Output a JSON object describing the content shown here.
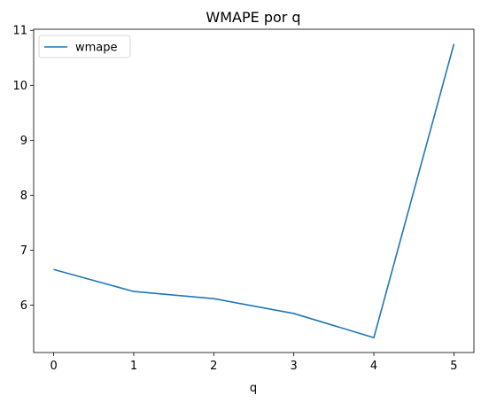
{
  "chart_data": {
    "type": "line",
    "title": "WMAPE por q",
    "xlabel": "q",
    "ylabel": "",
    "x": [
      0,
      1,
      2,
      3,
      4,
      5
    ],
    "series": [
      {
        "name": "wmape",
        "values": [
          6.65,
          6.25,
          6.12,
          5.85,
          5.41,
          10.75
        ],
        "color": "#1f77b4"
      }
    ],
    "xticks": [
      0,
      1,
      2,
      3,
      4,
      5
    ],
    "yticks": [
      6,
      7,
      8,
      9,
      10,
      11
    ],
    "xlim": [
      -0.25,
      5.25
    ],
    "ylim": [
      5.14,
      11.02
    ],
    "legend": "upper-left",
    "grid": false
  }
}
